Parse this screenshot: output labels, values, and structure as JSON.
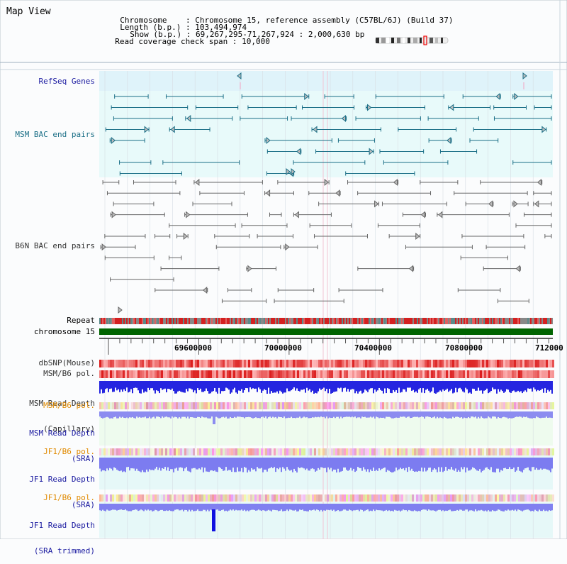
{
  "page": {
    "title": "Map View"
  },
  "info": {
    "chromosome_label": "Chromosome",
    "chromosome_value": "Chromosome 15, reference assembly (C57BL/6J) (Build 37)",
    "length_label": "Length (b.p.)",
    "length_value": "103,494,974",
    "show_label": "Show (b.p.)",
    "show_value": "69,267,295-71,267,924 : 2,000,630 bp",
    "read_coverage_label": "Read coverage check span",
    "read_coverage_value": "10,000"
  },
  "tracks": {
    "refseq": "RefSeq Genes",
    "msm_bac": "MSM BAC end pairs",
    "b6n_bac": "B6N BAC end pairs",
    "repeat": "Repeat",
    "chromosome": "chromosome 15",
    "dbsnp": "dbSNP(Mouse)",
    "msm_b6_pol_1": "MSM/B6 pol.",
    "msm_depth_cap_1": "MSM Read Depth",
    "msm_depth_cap_2": "(Capillary)",
    "msm_b6_pol_2": "MSM/B6 pol.",
    "msm_depth_sra_1": "MSM Read Depth",
    "msm_depth_sra_2": "(SRA)",
    "jf1_b6_pol_1": "JF1/B6 pol.",
    "jf1_depth_sra_1": "JF1 Read Depth",
    "jf1_depth_sra_2": "(SRA)",
    "jf1_b6_pol_2": "JF1/B6 pol.",
    "jf1_depth_trim_1": "JF1 Read Depth",
    "jf1_depth_trim_2": "(SRA trimmed)"
  },
  "axis": {
    "tick_labels": [
      "69600000",
      "70000000",
      "70400000",
      "70800000",
      "712000"
    ]
  },
  "colors": {
    "track_bg_light_blue": "#dff3fa",
    "track_bg_light_cyan": "#e8fafa",
    "chromosome_bar": "#006400",
    "depth_blue": "#2525e0",
    "depth_light_blue": "#8c8cf0",
    "gene_teal": "#1a6e86",
    "bac_gray": "#666666"
  }
}
